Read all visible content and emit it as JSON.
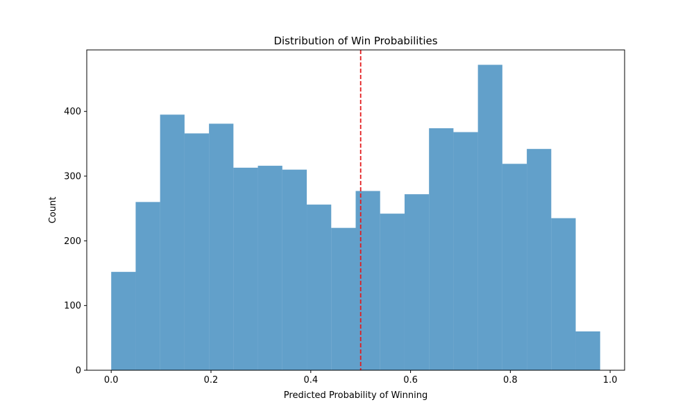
{
  "chart_data": {
    "type": "bar",
    "subtype": "histogram",
    "title": "Distribution of Win Probabilities",
    "xlabel": "Predicted Probability of Winning",
    "ylabel": "Count",
    "xlim": [
      -0.049,
      1.029
    ],
    "ylim": [
      0,
      495
    ],
    "xticks": [
      0.0,
      0.2,
      0.4,
      0.6,
      0.8,
      1.0
    ],
    "xtick_labels": [
      "0.0",
      "0.2",
      "0.4",
      "0.6",
      "0.8",
      "1.0"
    ],
    "yticks": [
      0,
      100,
      200,
      300,
      400
    ],
    "ytick_labels": [
      "0",
      "100",
      "200",
      "300",
      "400"
    ],
    "bin_edges": [
      0.0,
      0.049,
      0.098,
      0.147,
      0.196,
      0.245,
      0.294,
      0.343,
      0.392,
      0.441,
      0.49,
      0.539,
      0.588,
      0.637,
      0.686,
      0.735,
      0.784,
      0.833,
      0.882,
      0.931,
      0.98
    ],
    "counts": [
      152,
      260,
      395,
      366,
      381,
      313,
      316,
      310,
      256,
      220,
      277,
      242,
      272,
      374,
      368,
      472,
      319,
      342,
      235,
      60
    ],
    "bar_color": "#1f77b4",
    "bar_alpha": 0.7,
    "threshold": {
      "x": 0.5,
      "color": "#e31a1c",
      "style": "dashed"
    },
    "grid": false,
    "legend": "none"
  }
}
